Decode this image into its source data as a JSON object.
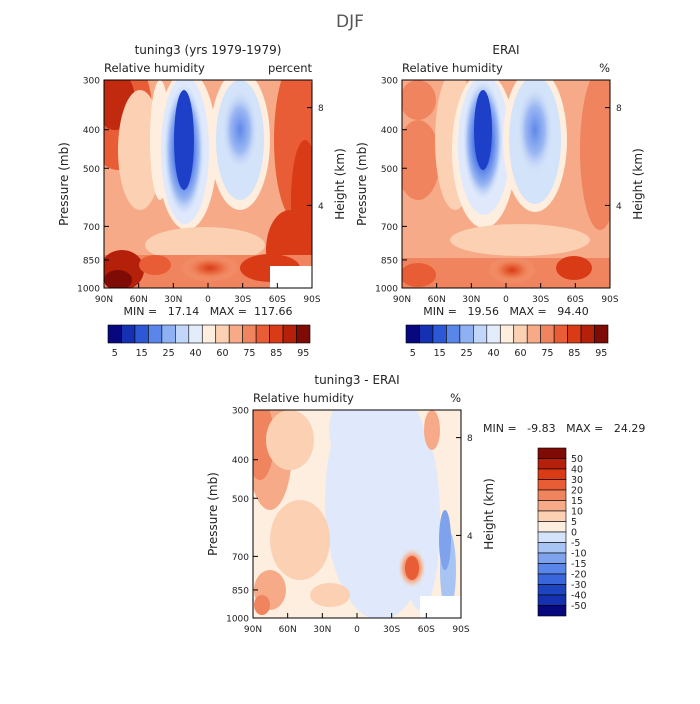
{
  "title": "DJF",
  "charts": [
    {
      "type": "heatmap",
      "title": "tuning3 (yrs 1979-1979)",
      "left_label": "Relative humidity",
      "units": "percent",
      "ylabel": "Pressure (mb)",
      "ylabel_right": "Height (km)",
      "x_ticks": [
        "90N",
        "60N",
        "30N",
        "0",
        "30S",
        "60S",
        "90S"
      ],
      "y_ticks": [
        "300",
        "400",
        "500",
        "700",
        "850",
        "1000"
      ],
      "y_right_ticks": [
        "8",
        "4"
      ],
      "stats": "MIN =   17.14   MAX =  117.66"
    },
    {
      "type": "heatmap",
      "title": "ERAI",
      "left_label": "Relative humidity",
      "units": "%",
      "ylabel": "Pressure (mb)",
      "ylabel_right": "Height (km)",
      "x_ticks": [
        "90N",
        "60N",
        "30N",
        "0",
        "30S",
        "60S",
        "90S"
      ],
      "y_ticks": [
        "300",
        "400",
        "500",
        "700",
        "850",
        "1000"
      ],
      "y_right_ticks": [
        "8",
        "4"
      ],
      "stats": "MIN =   19.56   MAX =   94.40"
    },
    {
      "type": "heatmap",
      "title": "tuning3 - ERAI",
      "left_label": "Relative humidity",
      "units": "%",
      "ylabel": "Pressure (mb)",
      "ylabel_right": "Height (km)",
      "x_ticks": [
        "90N",
        "60N",
        "30N",
        "0",
        "30S",
        "60S",
        "90S"
      ],
      "y_ticks": [
        "300",
        "400",
        "500",
        "700",
        "850",
        "1000"
      ],
      "y_right_ticks": [
        "8",
        "4"
      ],
      "stats": "MIN =   -9.83   MAX =   24.29"
    }
  ],
  "colorbar_main": {
    "labels": [
      "5",
      "15",
      "25",
      "40",
      "60",
      "75",
      "85",
      "95"
    ],
    "colors": [
      "#08087e",
      "#1530b0",
      "#2c58d6",
      "#5a86ea",
      "#8fb0f2",
      "#c1d6f8",
      "#e2ecfb",
      "#fdeee0",
      "#fbd0b3",
      "#f6aa87",
      "#f0845f",
      "#e85d35",
      "#d93b17",
      "#b5200b",
      "#7e0b05"
    ]
  },
  "colorbar_diff": {
    "labels": [
      "50",
      "40",
      "30",
      "20",
      "15",
      "10",
      "5",
      "0",
      "-5",
      "-10",
      "-15",
      "-20",
      "-30",
      "-40",
      "-50"
    ],
    "colors": [
      "#7e0b05",
      "#b5200b",
      "#d93b17",
      "#e85d35",
      "#f0845f",
      "#f6aa87",
      "#fbd0b3",
      "#fdeee0",
      "#d3e3f9",
      "#a8c4f3",
      "#7ea2ec",
      "#5a86ea",
      "#3a66dc",
      "#1e45c0",
      "#1530b0",
      "#08087e"
    ]
  },
  "chart_data": [
    {
      "type": "heatmap",
      "title": "tuning3 (yrs 1979-1979)",
      "variable": "Relative humidity",
      "units": "percent",
      "x": [
        "90N",
        "60N",
        "30N",
        "0",
        "30S",
        "60S",
        "90S"
      ],
      "y": [
        300,
        400,
        500,
        700,
        850,
        1000
      ],
      "values": [
        [
          90,
          60,
          25,
          50,
          55,
          60,
          85
        ],
        [
          85,
          60,
          20,
          40,
          35,
          55,
          80
        ],
        [
          80,
          65,
          20,
          45,
          30,
          60,
          75
        ],
        [
          80,
          70,
          35,
          50,
          40,
          65,
          75
        ],
        [
          85,
          80,
          65,
          60,
          65,
          90,
          80
        ],
        [
          95,
          85,
          80,
          85,
          80,
          85,
          80
        ]
      ],
      "min": 17.14,
      "max": 117.66
    },
    {
      "type": "heatmap",
      "title": "ERAI",
      "variable": "Relative humidity",
      "units": "%",
      "x": [
        "90N",
        "60N",
        "30N",
        "0",
        "30S",
        "60S",
        "90S"
      ],
      "y": [
        300,
        400,
        500,
        700,
        850,
        1000
      ],
      "values": [
        [
          70,
          60,
          25,
          55,
          45,
          60,
          75
        ],
        [
          75,
          60,
          15,
          45,
          35,
          60,
          75
        ],
        [
          70,
          60,
          15,
          50,
          35,
          60,
          70
        ],
        [
          70,
          70,
          30,
          55,
          45,
          65,
          70
        ],
        [
          75,
          80,
          65,
          60,
          70,
          75,
          75
        ],
        [
          85,
          80,
          85,
          80,
          80,
          85,
          85
        ]
      ],
      "min": 19.56,
      "max": 94.4
    },
    {
      "type": "heatmap",
      "title": "tuning3 - ERAI",
      "variable": "Relative humidity",
      "units": "%",
      "x": [
        "90N",
        "60N",
        "30N",
        "0",
        "30S",
        "60S",
        "90S"
      ],
      "y": [
        300,
        400,
        500,
        700,
        850,
        1000
      ],
      "values": [
        [
          20,
          5,
          0,
          -5,
          5,
          10,
          10
        ],
        [
          15,
          5,
          5,
          -5,
          0,
          5,
          5
        ],
        [
          10,
          5,
          5,
          -5,
          -5,
          5,
          5
        ],
        [
          10,
          5,
          5,
          0,
          -5,
          5,
          5
        ],
        [
          10,
          5,
          5,
          5,
          0,
          20,
          0
        ],
        [
          10,
          5,
          5,
          5,
          0,
          5,
          0
        ]
      ],
      "min": -9.83,
      "max": 24.29
    }
  ]
}
